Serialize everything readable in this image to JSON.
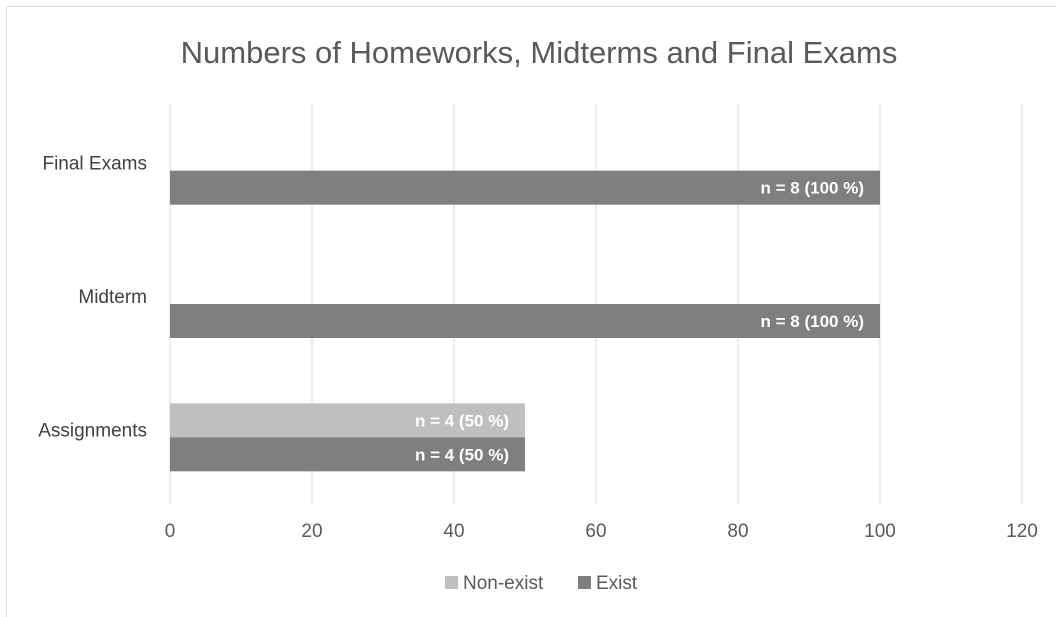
{
  "chart_data": {
    "type": "bar",
    "orientation": "horizontal",
    "title": "Numbers of Homeworks, Midterms and Final Exams",
    "xlabel": "",
    "ylabel": "",
    "categories": [
      "Assignments",
      "Midterm",
      "Final Exams"
    ],
    "series": [
      {
        "name": "Non-exist",
        "color": "#bfbfbf",
        "values": [
          50,
          null,
          null
        ],
        "labels": [
          "n = 4 (50 %)",
          "",
          ""
        ]
      },
      {
        "name": "Exist",
        "color": "#7f7f80",
        "values": [
          50,
          100,
          100
        ],
        "labels": [
          "n = 4 (50 %)",
          "n = 8 (100 %)",
          "n = 8 (100 %)"
        ]
      }
    ],
    "xlim": [
      0,
      120
    ],
    "xticks": [
      "0",
      "20",
      "40",
      "60",
      "80",
      "100",
      "120"
    ],
    "grid": "vertical",
    "gridline_color": "#d9d9d9",
    "legend": "bottom"
  }
}
